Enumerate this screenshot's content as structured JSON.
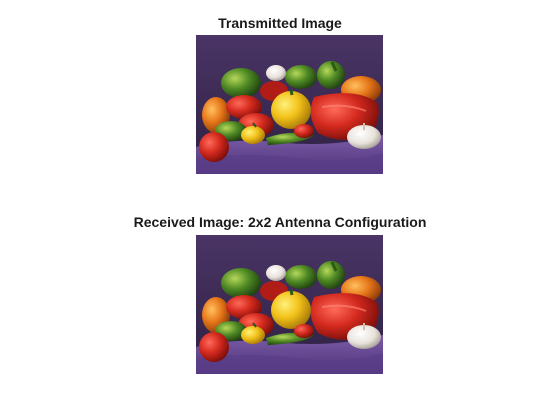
{
  "figure": {
    "top_title": "Transmitted Image",
    "bottom_title": "Received Image: 2x2 Antenna Configuration"
  },
  "colors": {
    "background_dark_purple": "#3b2a52",
    "tablecloth_purple": "#6a4c96",
    "red_pepper": "#d42a1e",
    "yellow_pepper": "#f2c21a",
    "green_pepper": "#4f8a24",
    "orange_pepper": "#e8781a",
    "garlic": "#e8e2dc",
    "tomato": "#c81c18"
  }
}
